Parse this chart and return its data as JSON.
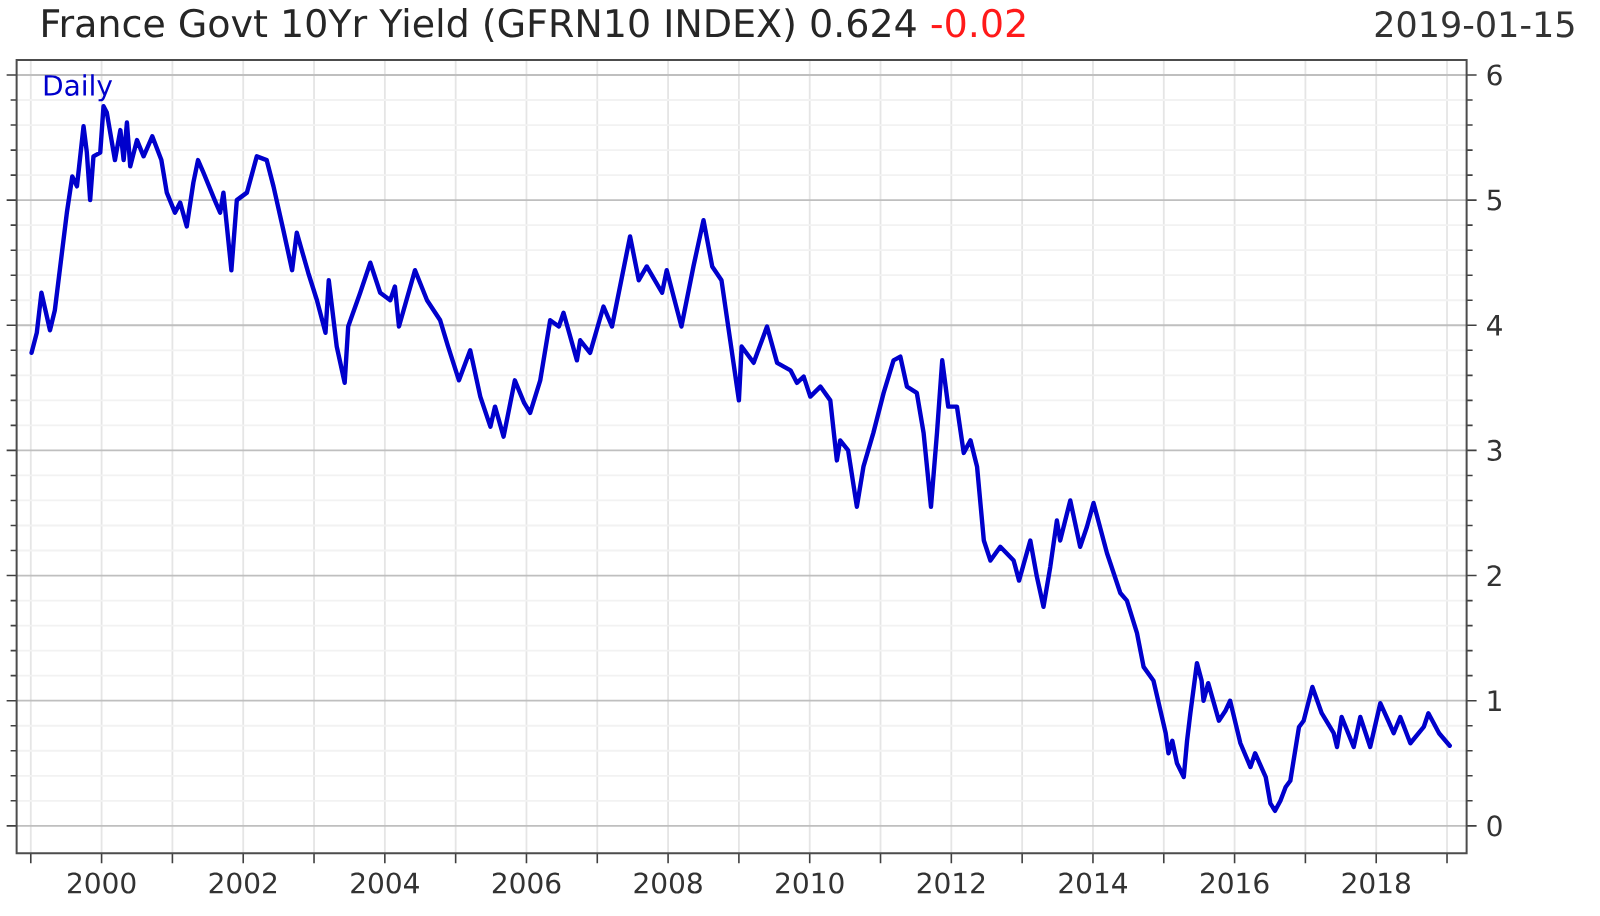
{
  "chart_data": {
    "type": "line",
    "title": "France Govt 10Yr Yield (GFRN10 INDEX) 0.624",
    "annotations": [
      "-0.02",
      "2019-01-15"
    ],
    "xlim": [
      "1998-10-20",
      "2019-04-12"
    ],
    "ylim": [
      -0.22,
      6.12
    ],
    "xticks": [
      {
        "value": "1999",
        "label": null
      },
      "2000",
      {
        "value": "2001",
        "label": null
      },
      "2002",
      {
        "value": "2003",
        "label": null
      },
      "2004",
      {
        "value": "2005",
        "label": null
      },
      "2006",
      {
        "value": "2007",
        "label": null
      },
      "2008",
      {
        "value": "2009",
        "label": null
      },
      "2010",
      {
        "value": "2011",
        "label": null
      },
      "2012",
      {
        "value": "2013",
        "label": null
      },
      "2014",
      {
        "value": "2015",
        "label": null
      },
      "2016",
      {
        "value": "2017",
        "label": null
      },
      "2018",
      {
        "value": "2019",
        "label": null
      }
    ],
    "yticks": [
      0,
      1,
      2,
      3,
      4,
      5,
      6
    ],
    "grid": true,
    "legend": "top left",
    "series": [
      {
        "name": "Daily",
        "color": "#0000cc",
        "x": [
          "1999-01-05",
          "1999-02-01",
          "1999-02-25",
          "1999-04-10",
          "1999-05-05",
          "1999-07-06",
          "1999-08-03",
          "1999-08-27",
          "1999-09-30",
          "1999-10-17",
          "1999-11-03",
          "1999-11-20",
          "1999-12-25",
          "2000-01-11",
          "2000-01-28",
          "2000-03-10",
          "2000-04-07",
          "2000-04-24",
          "2000-05-11",
          "2000-05-28",
          "2000-07-02",
          "2000-08-05",
          "2000-09-19",
          "2000-11-05",
          "2000-12-03",
          "2001-01-14",
          "2001-02-10",
          "2001-03-16",
          "2001-04-19",
          "2001-05-13",
          "2001-06-10",
          "2001-08-07",
          "2001-09-04",
          "2001-09-21",
          "2001-11-01",
          "2001-11-29",
          "2002-01-20",
          "2002-03-12",
          "2002-05-02",
          "2002-06-06",
          "2002-07-27",
          "2002-09-10",
          "2002-10-04",
          "2002-12-02",
          "2003-01-16",
          "2003-03-01",
          "2003-03-18",
          "2003-04-28",
          "2003-06-08",
          "2003-06-26",
          "2003-08-27",
          "2003-10-18",
          "2003-12-08",
          "2004-01-29",
          "2004-02-22",
          "2004-03-14",
          "2004-06-05",
          "2004-08-06",
          "2004-10-13",
          "2004-11-23",
          "2005-01-18",
          "2005-03-17",
          "2005-05-08",
          "2005-06-29",
          "2005-07-23",
          "2005-09-05",
          "2005-11-02",
          "2005-12-20",
          "2006-01-20",
          "2006-03-13",
          "2006-05-03",
          "2006-06-17",
          "2006-07-11",
          "2006-09-18",
          "2006-10-05",
          "2006-11-25",
          "2007-02-02",
          "2007-03-18",
          "2007-06-19",
          "2007-08-03",
          "2007-09-13",
          "2007-12-01",
          "2007-12-25",
          "2008-03-10",
          "2008-05-11",
          "2008-07-02",
          "2008-08-16",
          "2008-10-03",
          "2008-11-17",
          "2009-01-01",
          "2009-01-15",
          "2009-03-18",
          "2009-05-26",
          "2009-07-17",
          "2009-09-24",
          "2009-10-27",
          "2009-12-01",
          "2010-01-04",
          "2010-02-25",
          "2010-04-17",
          "2010-05-21",
          "2010-06-07",
          "2010-07-18",
          "2010-09-01",
          "2010-10-05",
          "2010-11-25",
          "2011-01-17",
          "2011-03-09",
          "2011-04-13",
          "2011-05-17",
          "2011-07-07",
          "2011-08-11",
          "2011-09-18",
          "2011-10-19",
          "2011-11-15",
          "2011-12-16",
          "2012-01-30",
          "2012-03-05",
          "2012-04-09",
          "2012-05-13",
          "2012-06-17",
          "2012-07-21",
          "2012-09-10",
          "2012-11-18",
          "2012-12-16",
          "2013-02-12",
          "2013-03-18",
          "2013-04-21",
          "2013-05-26",
          "2013-06-29",
          "2013-07-16",
          "2013-09-06",
          "2013-10-27",
          "2013-12-01",
          "2014-01-04",
          "2014-03-14",
          "2014-05-22",
          "2014-06-25",
          "2014-08-16",
          "2014-09-19",
          "2014-11-09",
          "2015-01-11",
          "2015-01-25",
          "2015-02-14",
          "2015-03-10",
          "2015-04-14",
          "2015-05-01",
          "2015-05-18",
          "2015-06-21",
          "2015-07-15",
          "2015-07-25",
          "2015-08-18",
          "2015-10-12",
          "2015-11-15",
          "2015-12-09",
          "2016-01-31",
          "2016-03-23",
          "2016-04-16",
          "2016-06-10",
          "2016-07-04",
          "2016-07-28",
          "2016-08-25",
          "2016-09-21",
          "2016-10-15",
          "2016-11-29",
          "2016-12-23",
          "2017-02-06",
          "2017-03-26",
          "2017-05-27",
          "2017-06-13",
          "2017-07-07",
          "2017-09-07",
          "2017-10-11",
          "2017-12-01",
          "2018-01-22",
          "2018-03-04",
          "2018-04-01",
          "2018-05-05",
          "2018-06-26",
          "2018-09-03",
          "2018-09-27",
          "2018-11-21",
          "2019-01-15"
        ],
        "values": [
          3.78,
          3.94,
          4.26,
          3.96,
          4.12,
          4.9,
          5.19,
          5.11,
          5.59,
          5.38,
          5.0,
          5.35,
          5.38,
          5.75,
          5.7,
          5.32,
          5.56,
          5.32,
          5.62,
          5.27,
          5.48,
          5.35,
          5.51,
          5.32,
          5.06,
          4.9,
          4.98,
          4.79,
          5.14,
          5.32,
          5.22,
          5.0,
          4.9,
          5.06,
          4.44,
          5.0,
          5.06,
          5.35,
          5.32,
          5.11,
          4.76,
          4.44,
          4.74,
          4.42,
          4.2,
          3.94,
          4.36,
          3.83,
          3.54,
          3.99,
          4.26,
          4.5,
          4.26,
          4.2,
          4.31,
          3.99,
          4.44,
          4.2,
          4.04,
          3.83,
          3.56,
          3.8,
          3.43,
          3.19,
          3.35,
          3.11,
          3.56,
          3.38,
          3.3,
          3.56,
          4.04,
          3.99,
          4.1,
          3.72,
          3.88,
          3.78,
          4.15,
          3.99,
          4.71,
          4.36,
          4.47,
          4.26,
          4.44,
          3.99,
          4.47,
          4.84,
          4.47,
          4.36,
          3.88,
          3.4,
          3.83,
          3.7,
          3.99,
          3.7,
          3.64,
          3.54,
          3.59,
          3.43,
          3.51,
          3.4,
          2.92,
          3.08,
          3.0,
          2.55,
          2.87,
          3.14,
          3.46,
          3.72,
          3.75,
          3.51,
          3.46,
          3.14,
          2.55,
          3.14,
          3.72,
          3.35,
          3.35,
          2.98,
          3.08,
          2.87,
          2.28,
          2.12,
          2.23,
          2.12,
          1.96,
          2.28,
          1.99,
          1.75,
          2.07,
          2.44,
          2.28,
          2.6,
          2.23,
          2.39,
          2.58,
          2.18,
          1.86,
          1.8,
          1.54,
          1.27,
          1.16,
          0.74,
          0.58,
          0.68,
          0.5,
          0.39,
          0.68,
          0.9,
          1.3,
          1.16,
          1.0,
          1.14,
          0.84,
          0.92,
          1.0,
          0.66,
          0.47,
          0.58,
          0.39,
          0.18,
          0.12,
          0.2,
          0.31,
          0.36,
          0.79,
          0.84,
          1.11,
          0.9,
          0.74,
          0.63,
          0.87,
          0.63,
          0.87,
          0.63,
          0.98,
          0.84,
          0.74,
          0.87,
          0.66,
          0.79,
          0.9,
          0.74,
          0.64
        ]
      }
    ]
  }
}
